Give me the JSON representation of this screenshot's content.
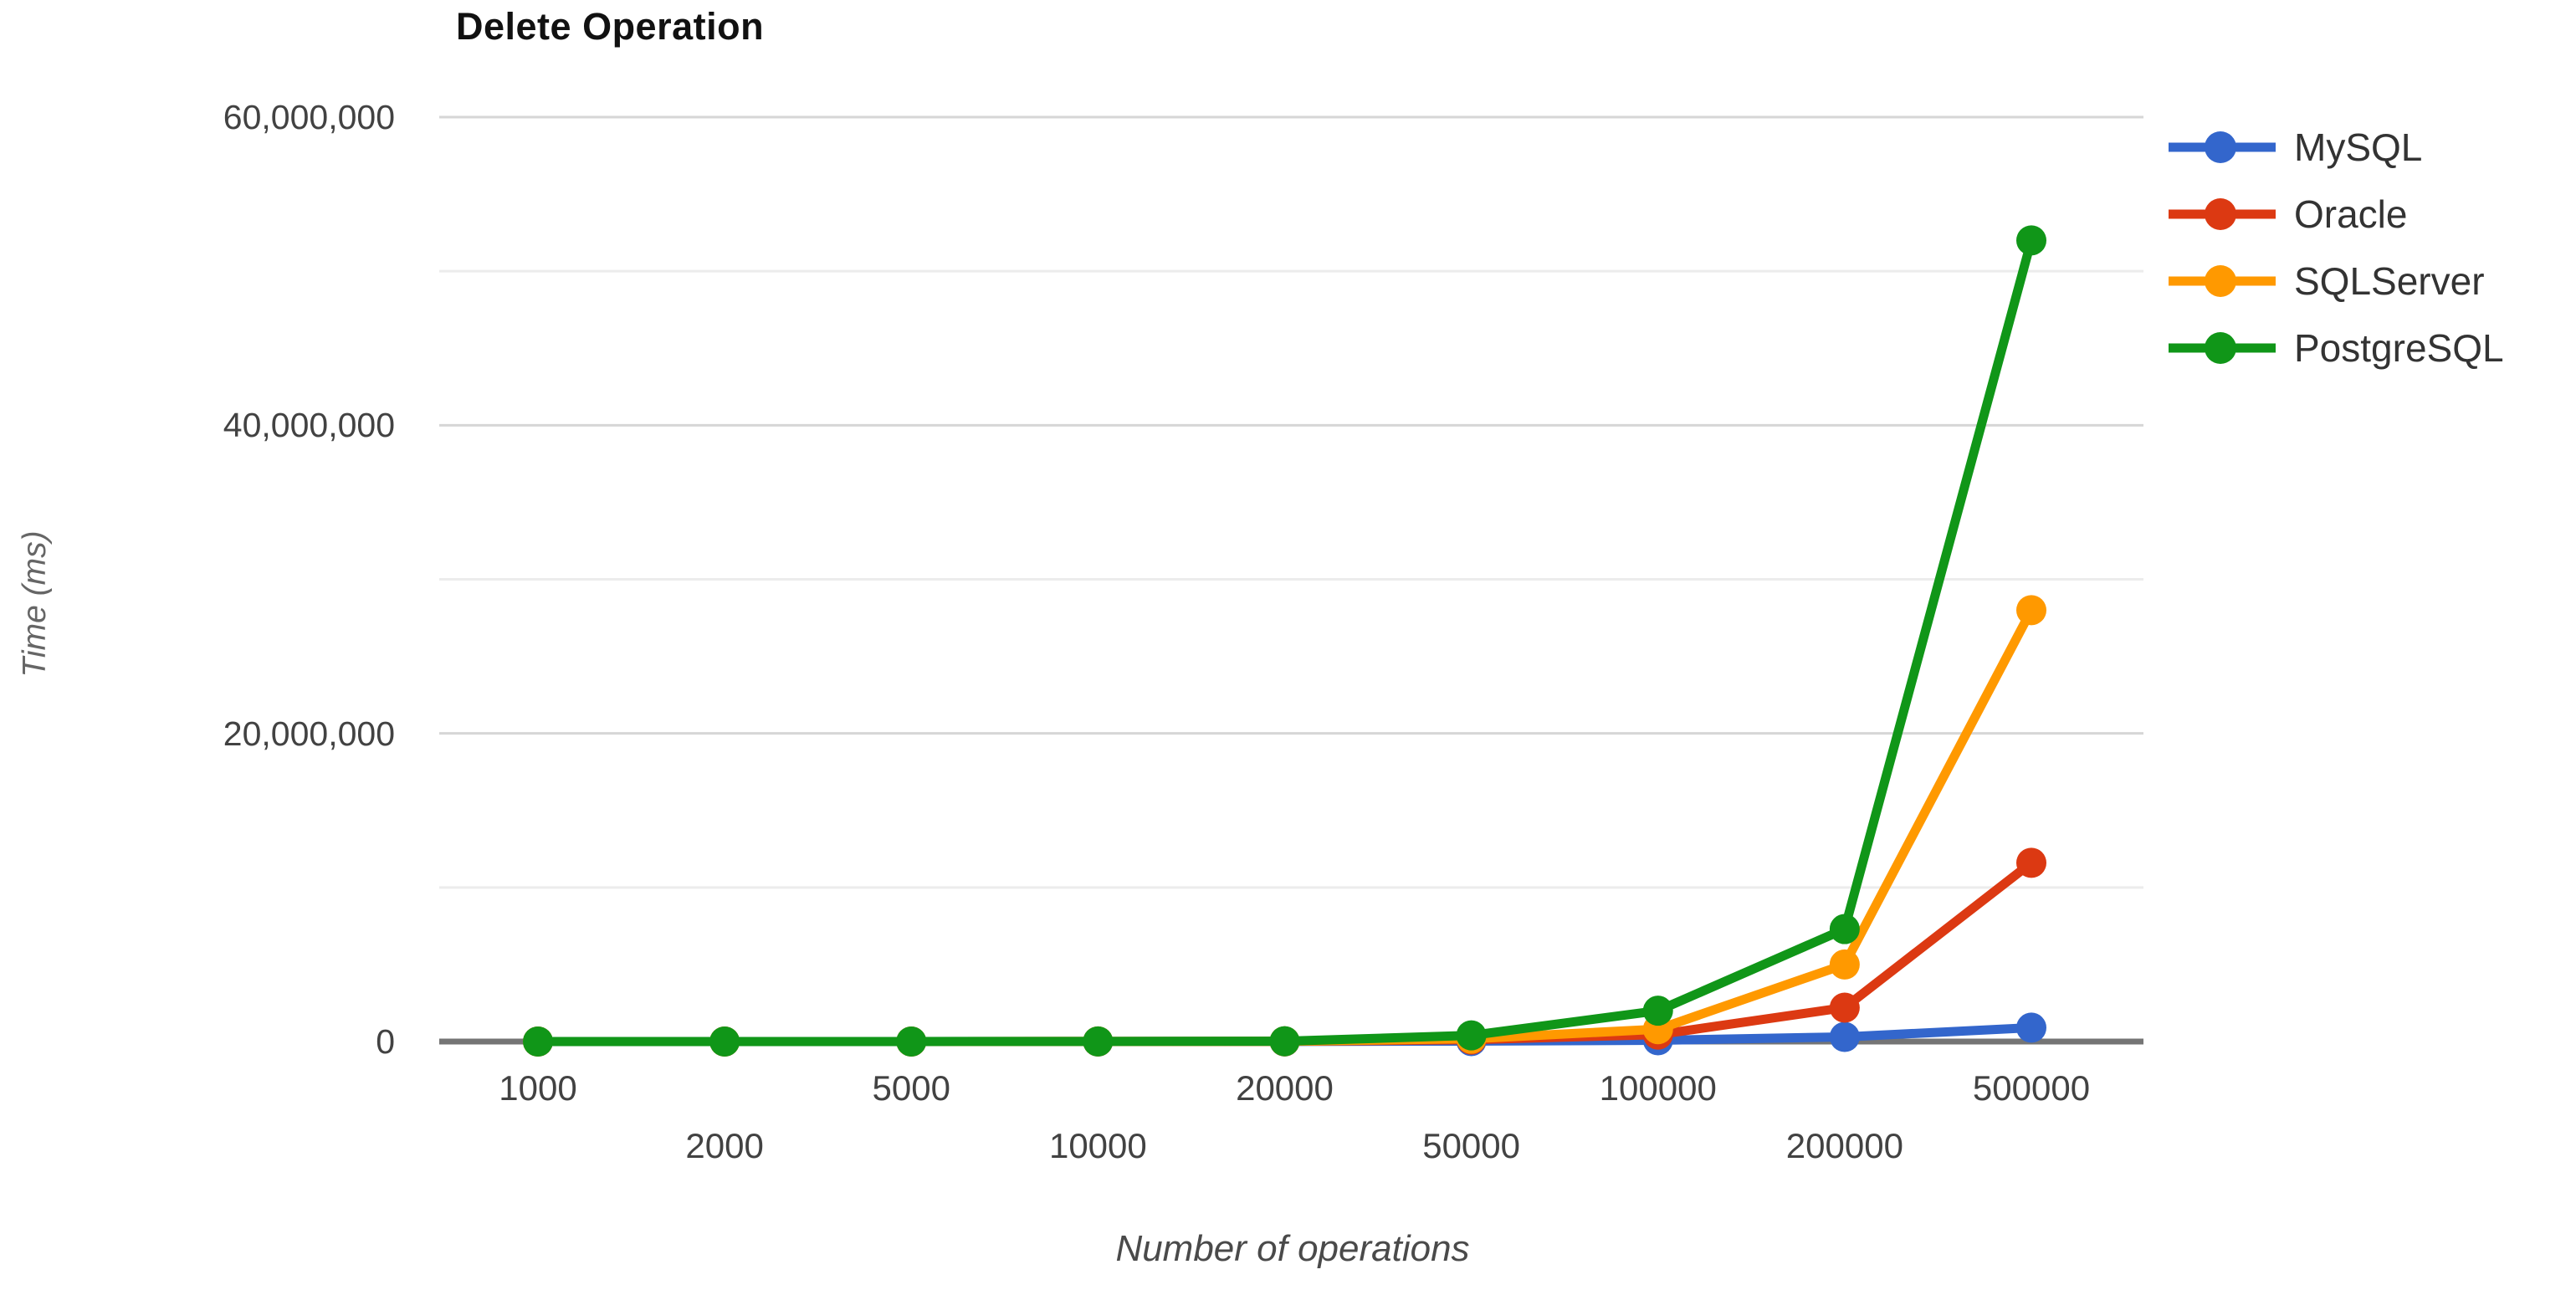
{
  "title": "Delete Operation",
  "chart_data": {
    "type": "line",
    "title": "Delete Operation",
    "xlabel": "Number of operations",
    "ylabel": "Time (ms)",
    "categories": [
      "1000",
      "2000",
      "5000",
      "10000",
      "20000",
      "50000",
      "100000",
      "200000",
      "500000"
    ],
    "series": [
      {
        "name": "MySQL",
        "color": "#3366CC",
        "values": [
          200,
          500,
          1200,
          2500,
          6000,
          30000,
          80000,
          300000,
          900000
        ]
      },
      {
        "name": "Oracle",
        "color": "#DC3912",
        "values": [
          400,
          900,
          2200,
          5500,
          14000,
          120000,
          450000,
          2200000,
          11600000
        ]
      },
      {
        "name": "SQLServer",
        "color": "#FF9900",
        "values": [
          350,
          800,
          2000,
          5000,
          13000,
          180000,
          800000,
          5000000,
          28000000
        ]
      },
      {
        "name": "PostgreSQL",
        "color": "#109618",
        "values": [
          500,
          1100,
          2800,
          7000,
          18000,
          400000,
          2000000,
          7300000,
          52000000
        ]
      }
    ],
    "ylim": [
      0,
      60000000
    ],
    "y_ticks": [
      0,
      20000000,
      40000000,
      60000000
    ],
    "y_tick_labels": [
      "0",
      "20,000,000",
      "40,000,000",
      "60,000,000"
    ],
    "minor_gridline_step": 10000000,
    "grid": true,
    "legend_position": "right",
    "x_tick_layout": "staggered-two-rows"
  },
  "colors": {
    "background": "#ffffff",
    "grid_major": "#d6d6d6",
    "grid_minor": "#ececec",
    "axis_line": "#757575",
    "tick_label": "#424242",
    "title_text": "#111111",
    "axis_title_text": "#666666",
    "legend_text": "#333333"
  }
}
